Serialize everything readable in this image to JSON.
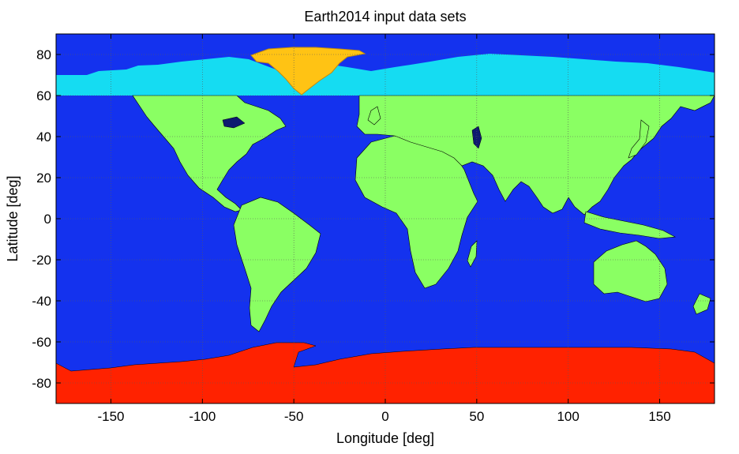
{
  "title": "Earth2014 input data sets",
  "x_axis": {
    "label": "Longitude [deg]",
    "ticks": [
      -150,
      -100,
      -50,
      0,
      50,
      100,
      150
    ],
    "tick_labels": [
      "-150",
      "-100",
      "-50",
      "0",
      "50",
      "100",
      "150"
    ]
  },
  "y_axis": {
    "label": "Latitude [deg]",
    "ticks": [
      80,
      60,
      40,
      20,
      0,
      -20,
      -40,
      -60,
      -80
    ],
    "tick_labels": [
      "80",
      "60",
      "40",
      "20",
      "0",
      "-20",
      "-40",
      "-60",
      "-80"
    ]
  },
  "extent": {
    "lon": [
      -180,
      180
    ],
    "lat": [
      -90,
      90
    ]
  },
  "grid": true,
  "colors": {
    "ocean": "#1432ee",
    "land": "#8aff63",
    "arctic_band": "#15dcf2",
    "greenland": "#ffc314",
    "antarctica": "#ff2200",
    "lakes": "#0d1a70",
    "coastline": "#000000"
  },
  "regions": {
    "ocean_lat_range": [
      -90,
      90
    ],
    "arctic_band_lat_range": [
      60,
      90
    ],
    "greenland_lon_range": [
      -73,
      -12
    ],
    "antarctica_lat_range": [
      -90,
      -60
    ]
  }
}
